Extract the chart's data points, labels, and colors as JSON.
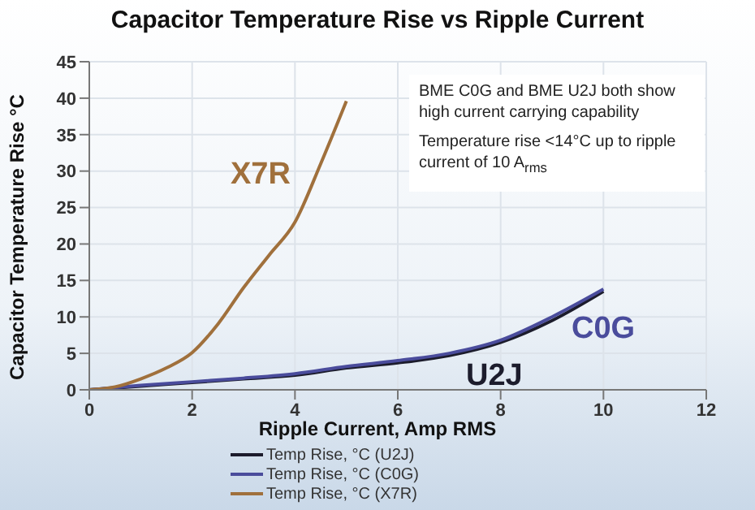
{
  "chart_data": {
    "type": "line",
    "title": "Capacitor Temperature Rise vs Ripple Current",
    "xlabel": "Ripple Current, Amp RMS",
    "ylabel": "Capacitor Temperature Rise °C",
    "xlim": [
      0,
      12
    ],
    "xticks": [
      0,
      2,
      4,
      6,
      8,
      10,
      12
    ],
    "ylim": [
      0,
      45
    ],
    "yticks": [
      0,
      5,
      10,
      15,
      20,
      25,
      30,
      35,
      40,
      45
    ],
    "grid": true,
    "legend": "bottom",
    "marker": "none",
    "line_style": "solid",
    "series": [
      {
        "name": "Temp Rise, °C (U2J)",
        "color": "#1c1c2c",
        "x": [
          0,
          1,
          2,
          3,
          4,
          5,
          6,
          7,
          8,
          9,
          10
        ],
        "values": [
          0,
          0.5,
          1,
          1.5,
          2,
          3,
          3.7,
          4.7,
          6.5,
          9.5,
          13.5
        ]
      },
      {
        "name": "Temp Rise, °C (C0G)",
        "color": "#4a4c9c",
        "x": [
          0,
          1,
          2,
          3,
          4,
          5,
          6,
          7,
          8,
          9,
          10
        ],
        "values": [
          0,
          0.6,
          1.1,
          1.6,
          2.2,
          3.2,
          4,
          5,
          6.8,
          10,
          13.8
        ]
      },
      {
        "name": "Temp Rise, °C (X7R)",
        "color": "#a0703c",
        "x": [
          0,
          0.5,
          1,
          1.5,
          2,
          2.5,
          3,
          3.5,
          4,
          4.5,
          5
        ],
        "values": [
          0,
          0.4,
          1.5,
          3,
          5.1,
          9,
          14,
          18.5,
          23,
          31,
          39.6
        ]
      }
    ],
    "annotations": [
      "X7R",
      "C0G",
      "U2J",
      "BME C0G and BME U2J both show high current carrying capability",
      "Temperature rise <14°C up to ripple current of 10 A$_{rms}$"
    ]
  }
}
